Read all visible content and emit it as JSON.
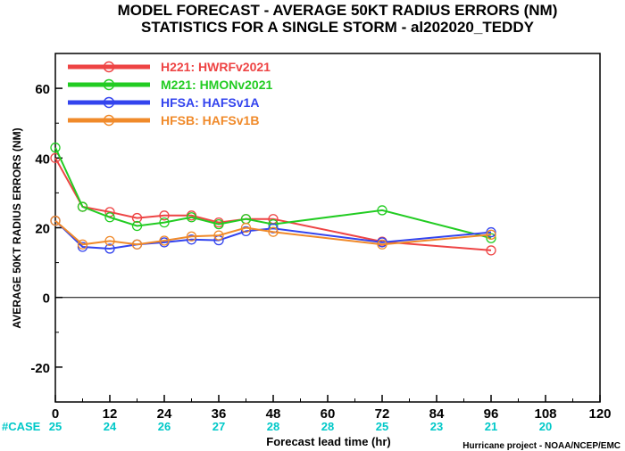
{
  "titles": {
    "line1": "MODEL FORECAST - AVERAGE 50KT RADIUS ERRORS (NM)",
    "line2": "STATISTICS FOR A SINGLE STORM - al202020_TEDDY"
  },
  "credit": "Hurricane project - NOAA/NCEP/EMC",
  "case_row": {
    "label": "#CASE",
    "label_color": "#00c8c8",
    "entries": [
      {
        "x": 0,
        "n": "25"
      },
      {
        "x": 12,
        "n": "24"
      },
      {
        "x": 24,
        "n": "26"
      },
      {
        "x": 36,
        "n": "27"
      },
      {
        "x": 48,
        "n": "28"
      },
      {
        "x": 60,
        "n": "28"
      },
      {
        "x": 72,
        "n": "25"
      },
      {
        "x": 84,
        "n": "23"
      },
      {
        "x": 96,
        "n": "21"
      },
      {
        "x": 108,
        "n": "20"
      }
    ]
  },
  "chart_data": {
    "type": "line",
    "title": "MODEL FORECAST - AVERAGE 50KT RADIUS ERRORS (NM)",
    "subtitle": "STATISTICS FOR A SINGLE STORM - al202020_TEDDY",
    "xlabel": "Forecast lead time (hr)",
    "ylabel": "AVERAGE 50KT RADIUS ERRORS (NM)",
    "xlim": [
      0,
      120
    ],
    "ylim": [
      -30,
      70
    ],
    "xticks": [
      0,
      12,
      24,
      36,
      48,
      60,
      72,
      84,
      96,
      108,
      120
    ],
    "yticks": [
      -20,
      0,
      20,
      40,
      60
    ],
    "zero_line": true,
    "grid": false,
    "legend_position": "top-left",
    "series": [
      {
        "name": "H221",
        "label": "HWRFv2021",
        "color": "#ee4444",
        "x": [
          0,
          6,
          12,
          18,
          24,
          30,
          36,
          42,
          48,
          72,
          96
        ],
        "y": [
          40,
          26,
          24.5,
          22.8,
          23.5,
          23.5,
          21.5,
          22.5,
          22.5,
          16,
          13.5
        ]
      },
      {
        "name": "M221",
        "label": "HMONv2021",
        "color": "#22cc22",
        "x": [
          0,
          6,
          12,
          18,
          24,
          30,
          36,
          42,
          48,
          72,
          96
        ],
        "y": [
          43,
          26,
          23,
          20.5,
          21.5,
          23,
          21,
          22.5,
          21,
          25,
          17
        ]
      },
      {
        "name": "HFSA",
        "label": "HAFSv1A",
        "color": "#3344ee",
        "x": [
          0,
          6,
          12,
          18,
          24,
          30,
          36,
          42,
          48,
          72,
          96
        ],
        "y": [
          22,
          14.5,
          14,
          15.2,
          15.8,
          16.6,
          16.4,
          19,
          19.8,
          15.8,
          18.7
        ]
      },
      {
        "name": "HFSB",
        "label": "HAFSv1B",
        "color": "#f08a2a",
        "x": [
          0,
          6,
          12,
          18,
          24,
          30,
          36,
          42,
          48,
          72,
          96
        ],
        "y": [
          22,
          15.2,
          16.2,
          15.2,
          16.3,
          17.5,
          17.8,
          20,
          18.8,
          15.2,
          18
        ]
      }
    ]
  }
}
